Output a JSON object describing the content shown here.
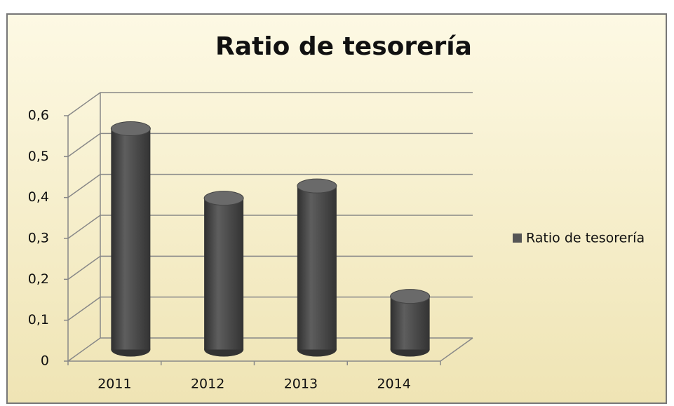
{
  "chart_data": {
    "type": "bar3d",
    "title": "Ratio de tesorería",
    "categories": [
      "2011",
      "2012",
      "2013",
      "2014"
    ],
    "series": [
      {
        "name": "Ratio de tesorería",
        "color": "#555555",
        "values": [
          0.54,
          0.37,
          0.4,
          0.13
        ]
      }
    ],
    "ylim": [
      0,
      0.6
    ],
    "yticks": [
      0,
      {
        "value": 0.1,
        "label": "0,1"
      },
      {
        "value": 0.2,
        "label": "0,2"
      },
      {
        "value": 0.3,
        "label": "0,3"
      },
      {
        "value": 0.4,
        "label": "0,4"
      },
      {
        "value": 0.5,
        "label": "0,5"
      },
      {
        "value": 0.6,
        "label": "0,6"
      }
    ],
    "grid": true,
    "legend": "right"
  }
}
